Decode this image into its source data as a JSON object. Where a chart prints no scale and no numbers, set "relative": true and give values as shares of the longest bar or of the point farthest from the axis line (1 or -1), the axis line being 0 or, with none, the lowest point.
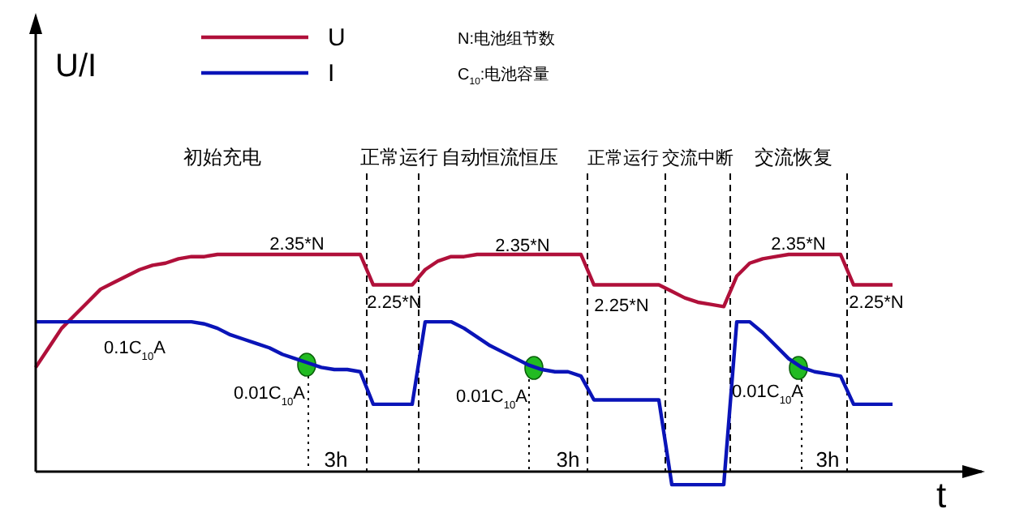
{
  "chart_data": {
    "type": "line",
    "relative": true,
    "xlabel": "t",
    "legend": "top",
    "grid": false,
    "categories": [
      null,
      null,
      null,
      null,
      null,
      null,
      null,
      null,
      null,
      null,
      null,
      null,
      null,
      null,
      null,
      null,
      null,
      null,
      null,
      null,
      null,
      null,
      null,
      null,
      null,
      null,
      null,
      null,
      null,
      null,
      null,
      null,
      null,
      null,
      null,
      null,
      null,
      null,
      null,
      null,
      null,
      null,
      null,
      null,
      null,
      null,
      null,
      null,
      null,
      null,
      null,
      null,
      null,
      null,
      null,
      null,
      null,
      null,
      null,
      null,
      null,
      null,
      null,
      null,
      null,
      null,
      null
    ],
    "series": [
      {
        "name": "U",
        "color": "#b0103a",
        "values": [
          0.48,
          0.57,
          0.66,
          0.72,
          0.78,
          0.84,
          0.87,
          0.9,
          0.93,
          0.95,
          0.96,
          0.98,
          0.99,
          0.99,
          1,
          1,
          1,
          1,
          1,
          1,
          1,
          1,
          1,
          1,
          1,
          1,
          0.86,
          0.86,
          0.86,
          0.86,
          0.93,
          0.97,
          0.99,
          0.99,
          1,
          1,
          1,
          1,
          1,
          1,
          1,
          1,
          1,
          0.86,
          0.86,
          0.86,
          0.86,
          0.86,
          0.86,
          0.83,
          0.8,
          0.78,
          0.77,
          0.76,
          0.9,
          0.96,
          0.98,
          0.99,
          1,
          1,
          1,
          1,
          1,
          0.86,
          0.86,
          0.86,
          0.86
        ]
      },
      {
        "name": "I",
        "color": "#0a14b8",
        "values": [
          0.69,
          0.69,
          0.69,
          0.69,
          0.69,
          0.69,
          0.69,
          0.69,
          0.69,
          0.69,
          0.69,
          0.69,
          0.69,
          0.68,
          0.66,
          0.63,
          0.61,
          0.59,
          0.57,
          0.54,
          0.52,
          0.5,
          0.48,
          0.47,
          0.47,
          0.46,
          0.31,
          0.31,
          0.31,
          0.31,
          0.69,
          0.69,
          0.69,
          0.66,
          0.62,
          0.58,
          0.55,
          0.52,
          0.49,
          0.47,
          0.46,
          0.46,
          0.44,
          0.33,
          0.33,
          0.33,
          0.33,
          0.33,
          0.33,
          -0.06,
          -0.06,
          -0.06,
          -0.06,
          -0.06,
          0.69,
          0.69,
          0.64,
          0.58,
          0.52,
          0.48,
          0.46,
          0.45,
          0.44,
          0.31,
          0.31,
          0.31,
          0.31
        ]
      }
    ],
    "annotations": [
      "N:电池组节数",
      "C$_{10}$:电池容量",
      "初始充电",
      "正常运行",
      "自动恒流恒压",
      "正常运行",
      "交流中断",
      "交流恢复",
      "2.35*N",
      "2.35*N",
      "2.35*N",
      "2.25*N",
      "2.25*N",
      "2.25*N",
      "0.1C$_{10}$A",
      "0.01C$_{10}$A",
      "0.01C$_{10}$A",
      "0.01C$_{10}$A",
      "3h",
      "3h",
      "3h",
      "U/I"
    ]
  }
}
